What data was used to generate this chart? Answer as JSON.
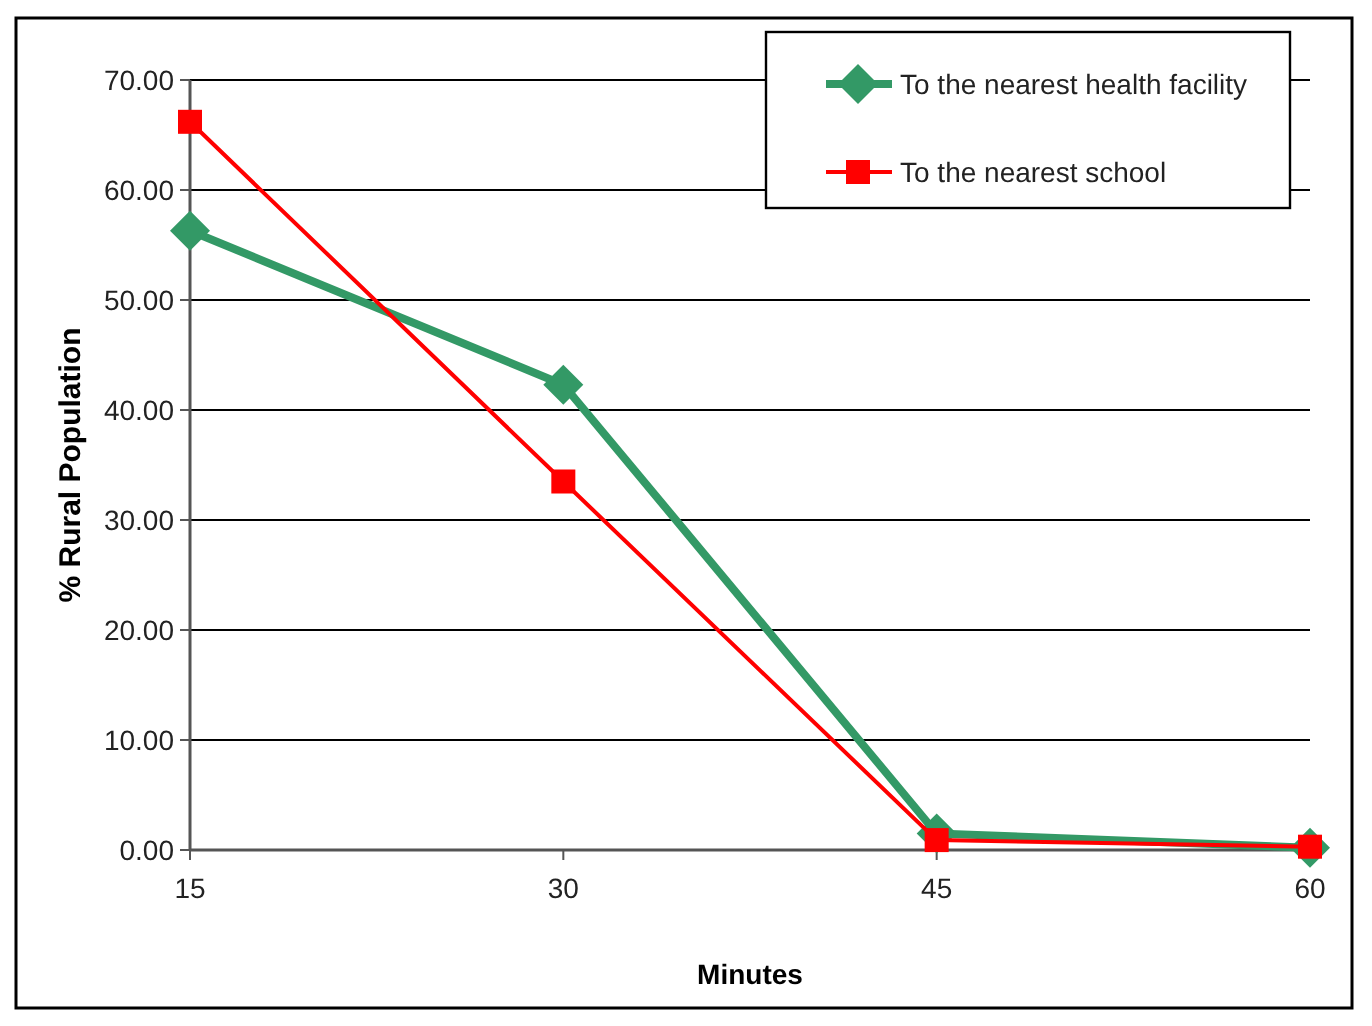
{
  "chart_data": {
    "type": "line",
    "xlabel": "Minutes",
    "ylabel": "% Rural Population",
    "x": [
      15,
      30,
      45,
      60
    ],
    "xlim": [
      15,
      60
    ],
    "xticks": [
      15,
      30,
      45,
      60
    ],
    "ylim": [
      0,
      70
    ],
    "yticks": [
      {
        "value": 0,
        "label": "0.00"
      },
      {
        "value": 10,
        "label": "10.00"
      },
      {
        "value": 20,
        "label": "20.00"
      },
      {
        "value": 30,
        "label": "30.00"
      },
      {
        "value": 40,
        "label": "40.00"
      },
      {
        "value": 50,
        "label": "50.00"
      },
      {
        "value": 60,
        "label": "60.00"
      },
      {
        "value": 70,
        "label": "70.00"
      }
    ],
    "grid": "y",
    "legend": "top right",
    "series": [
      {
        "name": "To the nearest health facility",
        "color": "#339966",
        "marker": "diamond",
        "values": [
          56.3,
          42.3,
          1.5,
          0.2
        ]
      },
      {
        "name": "To the nearest school",
        "color": "#ff0000",
        "marker": "square",
        "values": [
          66.2,
          33.5,
          0.9,
          0.3
        ]
      }
    ]
  }
}
